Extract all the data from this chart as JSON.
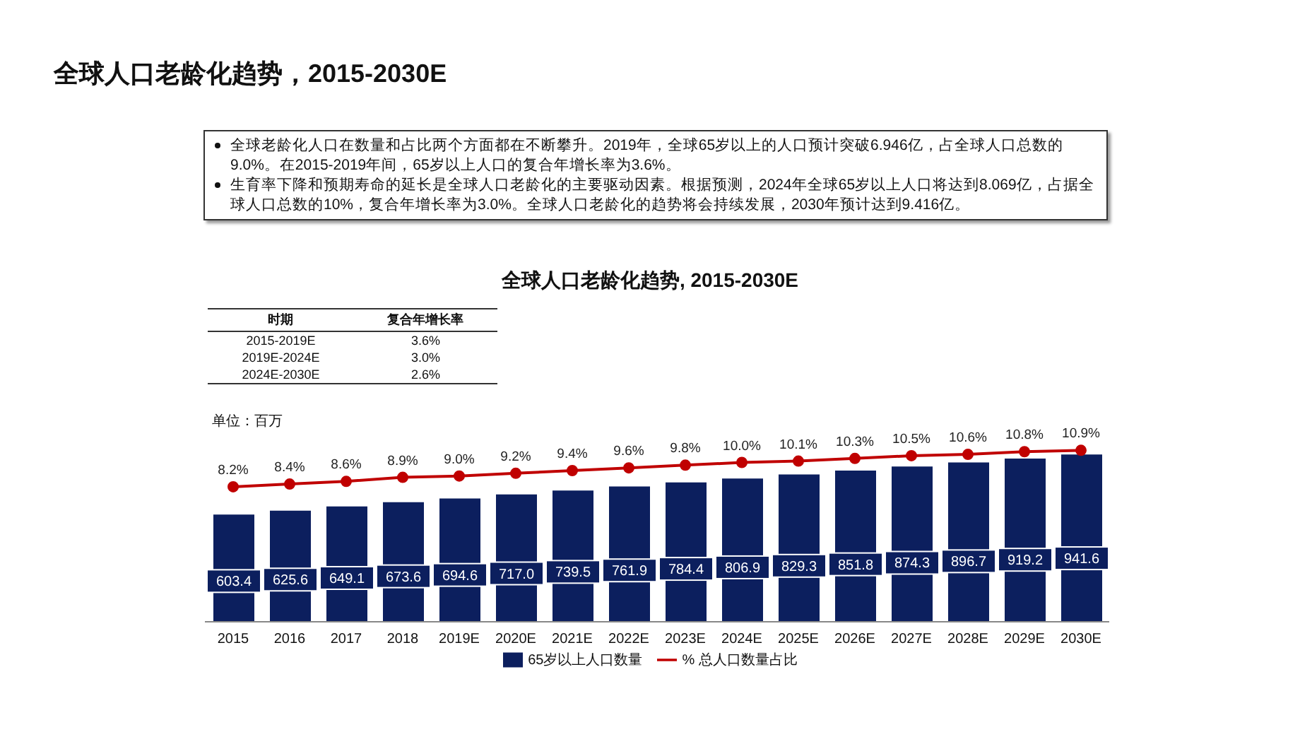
{
  "chart_data": {
    "type": "bar",
    "title": "全球人口老龄化趋势, 2015-2030E",
    "annotations": [
      "全球人口老龄化趋势，2015-2030E",
      "全球老龄化人口在数量和占比两个方面都在不断攀升。2019年，全球65岁以上的人口预计突破6.946亿，占全球人口总数的9.0%。在2015-2019年间，65岁以上人口的复合年增长率为3.6%。",
      "生育率下降和预期寿命的延长是全球人口老龄化的主要驱动因素。根据预测，2024年全球65岁以上人口将达到8.069亿，占据全球人口总数的10%，复合年增长率为3.0%。全球人口老龄化的趋势将会持续发展，2030年预计达到9.416亿。",
      "时期",
      "复合年增长率",
      "2015-2019E",
      "3.6%",
      "2019E-2024E",
      "3.0%",
      "2024E-2030E",
      "2.6%",
      "单位：百万"
    ],
    "categories": [
      "2015",
      "2016",
      "2017",
      "2018",
      "2019E",
      "2020E",
      "2021E",
      "2022E",
      "2023E",
      "2024E",
      "2025E",
      "2026E",
      "2027E",
      "2028E",
      "2029E",
      "2030E"
    ],
    "series": [
      {
        "name": "65岁以上人口数量",
        "color": "#0c1f5e",
        "values": [
          603.4,
          625.6,
          649.1,
          673.6,
          694.6,
          717.0,
          739.5,
          761.9,
          784.4,
          806.9,
          829.3,
          851.8,
          874.3,
          896.7,
          919.2,
          941.6
        ],
        "value_labels": [
          "603.4",
          "625.6",
          "649.1",
          "673.6",
          "694.6",
          "717.0",
          "739.5",
          "761.9",
          "784.4",
          "806.9",
          "829.3",
          "851.8",
          "874.3",
          "896.7",
          "919.2",
          "941.6"
        ]
      },
      {
        "name": "% 总人口数量占比",
        "type": "line",
        "axis": "y2",
        "color": "#c00000",
        "marker": "circle",
        "values": [
          8.2,
          8.4,
          8.6,
          8.9,
          9.0,
          9.2,
          9.4,
          9.6,
          9.8,
          10.0,
          10.1,
          10.3,
          10.5,
          10.6,
          10.8,
          10.9
        ],
        "value_labels": [
          "8.2%",
          "8.4%",
          "8.6%",
          "8.9%",
          "9.0%",
          "9.2%",
          "9.4%",
          "9.6%",
          "9.8%",
          "10.0%",
          "10.1%",
          "10.3%",
          "10.5%",
          "10.6%",
          "10.8%",
          "10.9%"
        ]
      }
    ],
    "data_labels": true,
    "tick_labels": "x",
    "grid": false,
    "legend": "bottom"
  }
}
